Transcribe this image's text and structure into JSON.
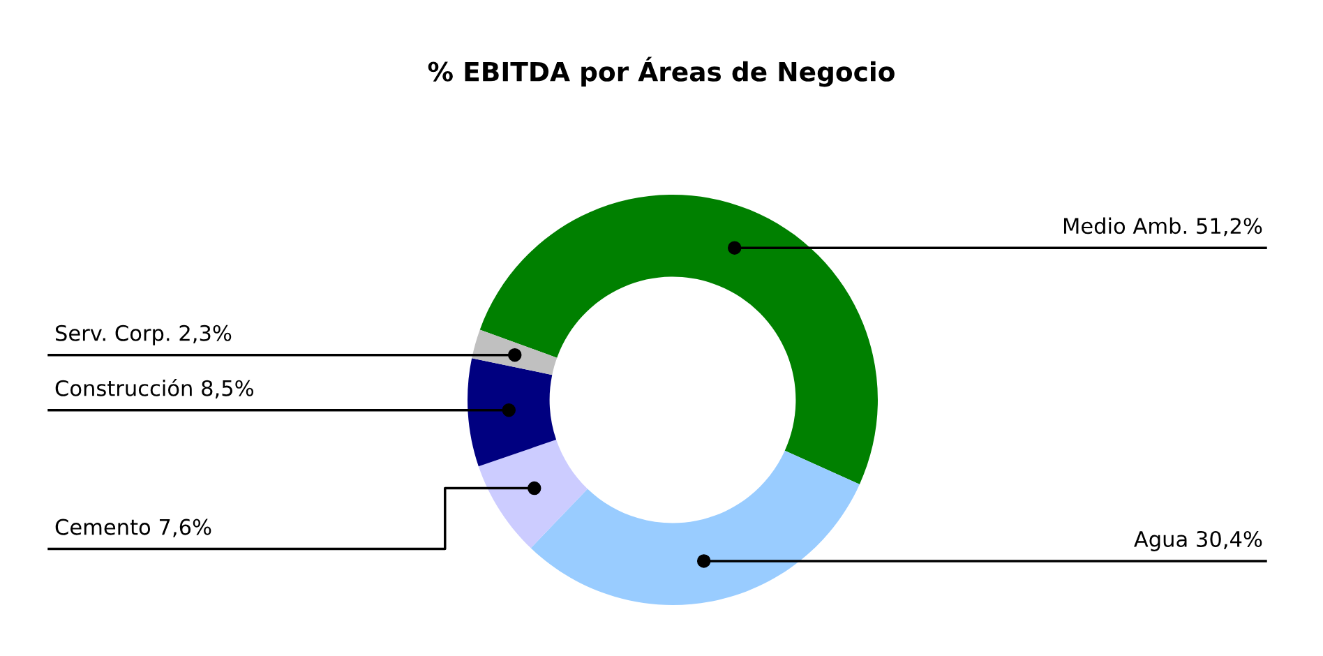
{
  "chart_data": {
    "type": "donut",
    "title": "% EBITDA por Áreas de Negocio",
    "categories": [
      "Medio Amb.",
      "Agua",
      "Cemento",
      "Construcción",
      "Serv. Corp."
    ],
    "values": [
      51.2,
      30.4,
      7.6,
      8.5,
      2.3
    ],
    "value_labels": [
      "51,2%",
      "30,4%",
      "7,6%",
      "8,5%",
      "2,3%"
    ],
    "colors": [
      "#008000",
      "#99ccff",
      "#ccccff",
      "#000080",
      "#c0c0c0"
    ]
  }
}
